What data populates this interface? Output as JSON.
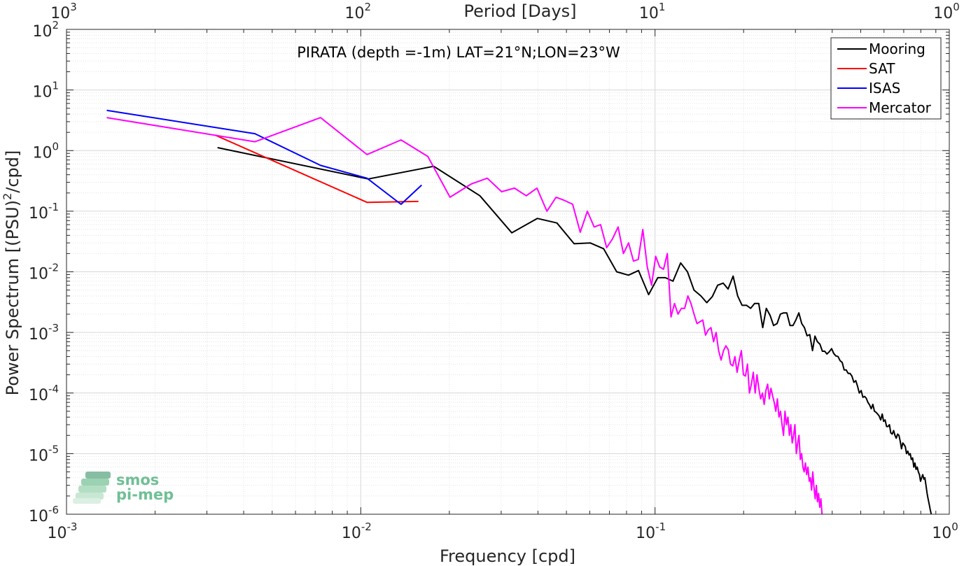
{
  "chart_data": {
    "type": "line",
    "title": "PIRATA (depth =-1m) LAT=21°N;LON=23°W",
    "xlabel": "Frequency [cpd]",
    "ylabel_main": "Power Spectrum [(PSU)",
    "ylabel_sup": "2",
    "ylabel_tail": "/cpd]",
    "top_xlabel": "Period [Days]",
    "xscale": "log",
    "yscale": "log",
    "xlim": [
      0.001,
      1
    ],
    "ylim": [
      1e-06,
      100
    ],
    "grid": true,
    "legend_position": "top-right",
    "x_ticks": [
      {
        "base": "10",
        "exp": "-3",
        "value": 0.001
      },
      {
        "base": "10",
        "exp": "-2",
        "value": 0.01
      },
      {
        "base": "10",
        "exp": "-1",
        "value": 0.1
      },
      {
        "base": "10",
        "exp": "0",
        "value": 1
      }
    ],
    "top_x_ticks": [
      {
        "base": "10",
        "exp": "3",
        "value": 0.001
      },
      {
        "base": "10",
        "exp": "2",
        "value": 0.01
      },
      {
        "base": "10",
        "exp": "1",
        "value": 0.1
      },
      {
        "base": "10",
        "exp": "0",
        "value": 1
      }
    ],
    "y_ticks": [
      {
        "base": "10",
        "exp": "2",
        "value": 100
      },
      {
        "base": "10",
        "exp": "1",
        "value": 10
      },
      {
        "base": "10",
        "exp": "0",
        "value": 1
      },
      {
        "base": "10",
        "exp": "-1",
        "value": 0.1
      },
      {
        "base": "10",
        "exp": "-2",
        "value": 0.01
      },
      {
        "base": "10",
        "exp": "-3",
        "value": 0.001
      },
      {
        "base": "10",
        "exp": "-4",
        "value": 0.0001
      },
      {
        "base": "10",
        "exp": "-5",
        "value": 1e-05
      },
      {
        "base": "10",
        "exp": "-6",
        "value": 1e-06
      }
    ],
    "series": [
      {
        "name": "Mooring",
        "color": "#000000",
        "points": [
          [
            0.00326,
            1.12
          ],
          [
            0.0106,
            0.34
          ],
          [
            0.0177,
            0.55
          ],
          [
            0.0254,
            0.18
          ],
          [
            0.0326,
            0.044
          ],
          [
            0.0398,
            0.076
          ],
          [
            0.0464,
            0.064
          ],
          [
            0.0531,
            0.029
          ],
          [
            0.0602,
            0.03
          ],
          [
            0.0669,
            0.024
          ],
          [
            0.0741,
            0.01
          ],
          [
            0.0812,
            0.0088
          ],
          [
            0.0879,
            0.0105
          ],
          [
            0.0951,
            0.0042
          ],
          [
            0.1022,
            0.008
          ],
          [
            0.1084,
            0.008
          ],
          [
            0.1151,
            0.007
          ],
          [
            0.1222,
            0.014
          ],
          [
            0.1289,
            0.01
          ],
          [
            0.1356,
            0.005
          ],
          [
            0.1432,
            0.004
          ],
          [
            0.1499,
            0.0031
          ],
          [
            0.1566,
            0.0039
          ],
          [
            0.1632,
            0.006
          ],
          [
            0.1704,
            0.0065
          ],
          [
            0.1771,
            0.0052
          ],
          [
            0.1842,
            0.0085
          ],
          [
            0.1909,
            0.004
          ],
          [
            0.1976,
            0.0028
          ],
          [
            0.2046,
            0.0028
          ],
          [
            0.2113,
            0.0025
          ],
          [
            0.218,
            0.003
          ],
          [
            0.2251,
            0.003
          ],
          [
            0.2322,
            0.0012
          ],
          [
            0.2389,
            0.0025
          ],
          [
            0.2461,
            0.0019
          ],
          [
            0.2528,
            0.0013
          ],
          [
            0.2599,
            0.0014
          ],
          [
            0.2666,
            0.002
          ],
          [
            0.2733,
            0.0021
          ],
          [
            0.2804,
            0.0021
          ],
          [
            0.2876,
            0.0013
          ],
          [
            0.2942,
            0.0013
          ],
          [
            0.3009,
            0.0016
          ],
          [
            0.3081,
            0.0021
          ],
          [
            0.3152,
            0.0014
          ],
          [
            0.3219,
            0.0012
          ],
          [
            0.3286,
            0.00088
          ],
          [
            0.3357,
            0.00092
          ],
          [
            0.3429,
            0.0005
          ],
          [
            0.3495,
            0.00087
          ],
          [
            0.3562,
            0.0007
          ],
          [
            0.3633,
            0.00064
          ],
          [
            0.3705,
            0.00049
          ],
          [
            0.3772,
            0.00049
          ],
          [
            0.3838,
            0.00044
          ],
          [
            0.391,
            0.00048
          ],
          [
            0.3981,
            0.00054
          ],
          [
            0.4048,
            0.00045
          ],
          [
            0.4115,
            0.00041
          ],
          [
            0.4186,
            0.0004
          ],
          [
            0.4258,
            0.00034
          ],
          [
            0.4324,
            0.00032
          ],
          [
            0.4391,
            0.00024
          ],
          [
            0.4463,
            0.00024
          ],
          [
            0.4534,
            0.00021
          ],
          [
            0.4601,
            0.00021
          ],
          [
            0.4668,
            0.00019
          ],
          [
            0.4739,
            0.00015
          ],
          [
            0.4811,
            0.00016
          ],
          [
            0.4877,
            0.00013
          ],
          [
            0.4944,
            0.0001
          ],
          [
            0.5016,
            0.00011
          ],
          [
            0.5087,
            8.5e-05
          ],
          [
            0.5154,
            8.8e-05
          ],
          [
            0.5221,
            8.2e-05
          ],
          [
            0.5292,
            7e-05
          ],
          [
            0.5363,
            6.3e-05
          ],
          [
            0.543,
            5.5e-05
          ],
          [
            0.5497,
            6.5e-05
          ],
          [
            0.5568,
            5e-05
          ],
          [
            0.564,
            4.8e-05
          ],
          [
            0.5707,
            4.5e-05
          ],
          [
            0.5773,
            4.2e-05
          ],
          [
            0.5845,
            3.6e-05
          ],
          [
            0.5916,
            4.5e-05
          ],
          [
            0.5983,
            3.4e-05
          ],
          [
            0.605,
            3.6e-05
          ],
          [
            0.6121,
            2.8e-05
          ],
          [
            0.6193,
            2.8e-05
          ],
          [
            0.6259,
            3e-05
          ],
          [
            0.6326,
            2.2e-05
          ],
          [
            0.6398,
            2.1e-05
          ],
          [
            0.6469,
            2.4e-05
          ],
          [
            0.6536,
            2e-05
          ],
          [
            0.6603,
            1.8e-05
          ],
          [
            0.6674,
            2.1e-05
          ],
          [
            0.6745,
            2e-05
          ],
          [
            0.6812,
            1.6e-05
          ],
          [
            0.6879,
            1.2e-05
          ],
          [
            0.695,
            1.5e-05
          ],
          [
            0.7022,
            1.4e-05
          ],
          [
            0.7089,
            1.3e-05
          ],
          [
            0.7155,
            1e-05
          ],
          [
            0.7227,
            1.1e-05
          ],
          [
            0.7298,
            9.5e-06
          ],
          [
            0.7365,
            1e-05
          ],
          [
            0.7432,
            8e-06
          ],
          [
            0.7503,
            8.5e-06
          ],
          [
            0.7575,
            6e-06
          ],
          [
            0.7641,
            7e-06
          ],
          [
            0.7708,
            5.5e-06
          ],
          [
            0.778,
            6e-06
          ],
          [
            0.7851,
            5e-06
          ],
          [
            0.7918,
            4.5e-06
          ],
          [
            0.7985,
            3.5e-06
          ],
          [
            0.8056,
            4e-06
          ],
          [
            0.8127,
            4.5e-06
          ],
          [
            0.8194,
            3.8e-06
          ],
          [
            0.8261,
            4e-06
          ],
          [
            0.8332,
            3e-06
          ],
          [
            0.8404,
            2.2e-06
          ],
          [
            0.8471,
            1.8e-06
          ],
          [
            0.8537,
            1.5e-06
          ],
          [
            0.8609,
            1.2e-06
          ],
          [
            0.868,
            1e-06
          ]
        ]
      },
      {
        "name": "SAT",
        "color": "#ff0000",
        "points": [
          [
            0.0032,
            1.8
          ],
          [
            0.0105,
            0.14
          ],
          [
            0.0157,
            0.145
          ]
        ]
      },
      {
        "name": "ISAS",
        "color": "#0000ff",
        "points": [
          [
            0.00137,
            4.6
          ],
          [
            0.00437,
            1.9
          ],
          [
            0.0073,
            0.57
          ],
          [
            0.0105,
            0.35
          ],
          [
            0.0137,
            0.13
          ],
          [
            0.0161,
            0.27
          ]
        ]
      },
      {
        "name": "Mercator",
        "color": "#ff00ff",
        "points": [
          [
            0.00137,
            3.5
          ],
          [
            0.00437,
            1.4
          ],
          [
            0.0073,
            3.5
          ],
          [
            0.0105,
            0.86
          ],
          [
            0.0137,
            1.5
          ],
          [
            0.0169,
            0.8
          ],
          [
            0.0201,
            0.17
          ],
          [
            0.0237,
            0.28
          ],
          [
            0.0269,
            0.35
          ],
          [
            0.0301,
            0.21
          ],
          [
            0.0333,
            0.24
          ],
          [
            0.0365,
            0.18
          ],
          [
            0.0397,
            0.24
          ],
          [
            0.0429,
            0.1
          ],
          [
            0.0461,
            0.17
          ],
          [
            0.0493,
            0.15
          ],
          [
            0.0525,
            0.13
          ],
          [
            0.0557,
            0.045
          ],
          [
            0.0589,
            0.1
          ],
          [
            0.0621,
            0.055
          ],
          [
            0.0653,
            0.06
          ],
          [
            0.0685,
            0.025
          ],
          [
            0.0717,
            0.035
          ],
          [
            0.0749,
            0.055
          ],
          [
            0.0781,
            0.02
          ],
          [
            0.0813,
            0.03
          ],
          [
            0.0845,
            0.015
          ],
          [
            0.0877,
            0.016
          ],
          [
            0.0909,
            0.05
          ],
          [
            0.0941,
            0.012
          ],
          [
            0.0973,
            0.006
          ],
          [
            0.1005,
            0.018
          ],
          [
            0.1037,
            0.012
          ],
          [
            0.1069,
            0.011
          ],
          [
            0.1101,
            0.02
          ],
          [
            0.1133,
            0.0018
          ],
          [
            0.1165,
            0.003
          ],
          [
            0.1197,
            0.002
          ],
          [
            0.1229,
            0.0025
          ],
          [
            0.1261,
            0.0025
          ],
          [
            0.1293,
            0.004
          ],
          [
            0.1325,
            0.003
          ],
          [
            0.1357,
            0.002
          ],
          [
            0.1389,
            0.0014
          ],
          [
            0.1421,
            0.0015
          ],
          [
            0.1453,
            0.0016
          ],
          [
            0.1485,
            0.0009
          ],
          [
            0.1517,
            0.0011
          ],
          [
            0.1549,
            0.0012
          ],
          [
            0.1581,
            0.0007
          ],
          [
            0.1613,
            0.001
          ],
          [
            0.1645,
            0.0005
          ],
          [
            0.1677,
            0.00035
          ],
          [
            0.1709,
            0.0005
          ],
          [
            0.1741,
            0.0006
          ],
          [
            0.1773,
            0.00052
          ],
          [
            0.1805,
            0.0003
          ],
          [
            0.1837,
            0.00028
          ],
          [
            0.1869,
            0.0004
          ],
          [
            0.1901,
            0.00022
          ],
          [
            0.1933,
            0.00035
          ],
          [
            0.1965,
            0.0005
          ],
          [
            0.1997,
            0.0002
          ],
          [
            0.2029,
            0.00019
          ],
          [
            0.2061,
            0.0003
          ],
          [
            0.2093,
            0.0001
          ],
          [
            0.2125,
            0.00014
          ],
          [
            0.2157,
            0.00022
          ],
          [
            0.2189,
            0.0001
          ],
          [
            0.2221,
            0.0002
          ],
          [
            0.2253,
            0.00012
          ],
          [
            0.2285,
            8e-05
          ],
          [
            0.2317,
            0.0001
          ],
          [
            0.2349,
            6.5e-05
          ],
          [
            0.2381,
            0.00011
          ],
          [
            0.2413,
            0.00014
          ],
          [
            0.2445,
            8e-05
          ],
          [
            0.2477,
            0.00012
          ],
          [
            0.2509,
            9e-05
          ],
          [
            0.2541,
            7e-05
          ],
          [
            0.2573,
            5e-05
          ],
          [
            0.2605,
            8e-05
          ],
          [
            0.2637,
            4e-05
          ],
          [
            0.2669,
            5e-05
          ],
          [
            0.2701,
            3e-05
          ],
          [
            0.2733,
            2e-05
          ],
          [
            0.2765,
            5e-05
          ],
          [
            0.2797,
            3e-05
          ],
          [
            0.2829,
            4e-05
          ],
          [
            0.2861,
            2e-05
          ],
          [
            0.2893,
            3e-05
          ],
          [
            0.2925,
            1.5e-05
          ],
          [
            0.2957,
            2e-05
          ],
          [
            0.2989,
            3e-05
          ],
          [
            0.3021,
            1e-05
          ],
          [
            0.3053,
            1.5e-05
          ],
          [
            0.3085,
            2e-05
          ],
          [
            0.3117,
            8e-06
          ],
          [
            0.3149,
            1e-05
          ],
          [
            0.3181,
            6e-06
          ],
          [
            0.3213,
            5e-06
          ],
          [
            0.3245,
            7e-06
          ],
          [
            0.3277,
            4.5e-06
          ],
          [
            0.3309,
            6e-06
          ],
          [
            0.3341,
            3.5e-06
          ],
          [
            0.3373,
            4e-06
          ],
          [
            0.3405,
            2.5e-06
          ],
          [
            0.3437,
            5e-06
          ],
          [
            0.3469,
            2.8e-06
          ],
          [
            0.3501,
            1.8e-06
          ],
          [
            0.3533,
            3e-06
          ],
          [
            0.3565,
            1.6e-06
          ],
          [
            0.3597,
            2.2e-06
          ],
          [
            0.3629,
            1.3e-06
          ],
          [
            0.3661,
            1.8e-06
          ],
          [
            0.3693,
            1e-06
          ]
        ]
      }
    ]
  },
  "logo": {
    "line1": "smos",
    "line2": "pi-mep",
    "color": "#6fbf95"
  }
}
